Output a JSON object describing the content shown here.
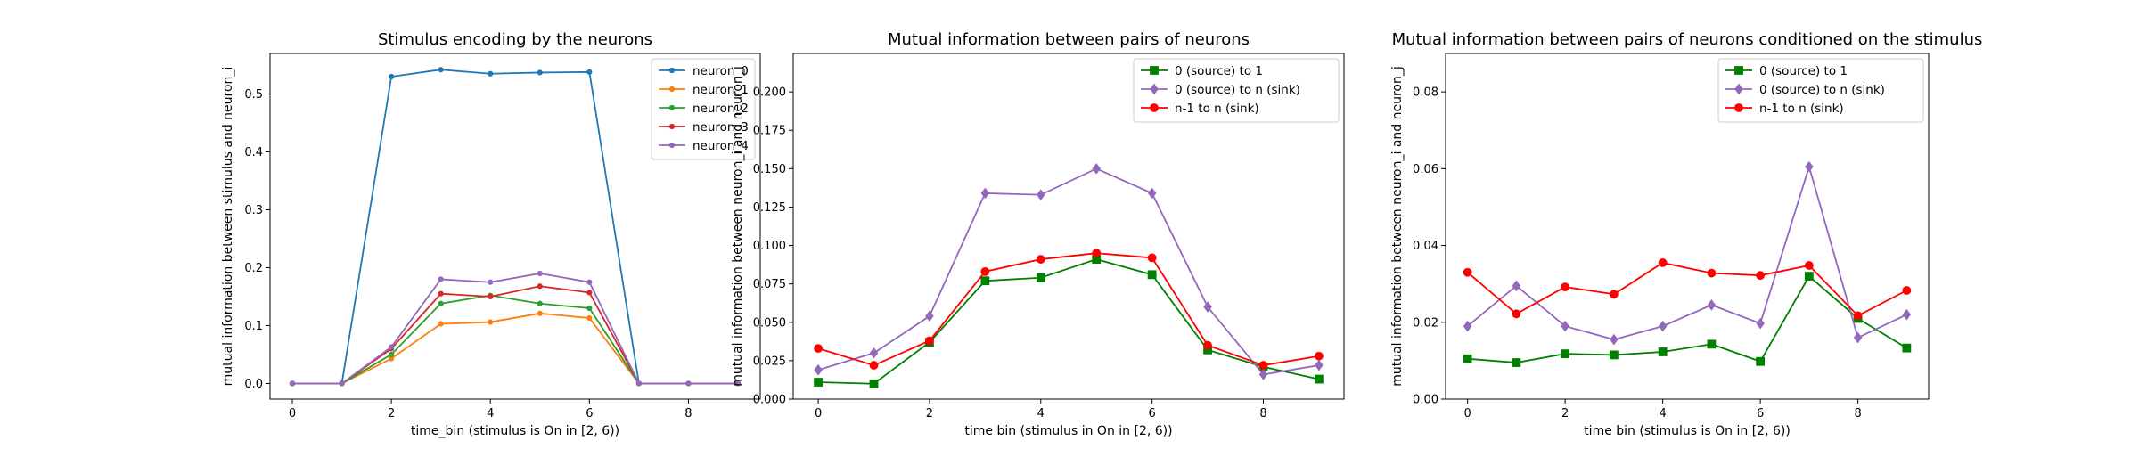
{
  "chart_data": [
    {
      "type": "line",
      "title": "Stimulus encoding by the neurons",
      "xlabel": "time_bin (stimulus is On in [2, 6))",
      "ylabel": "mutual information between stimulus and neuron_i",
      "xlim": [
        -0.45,
        9.45
      ],
      "ylim": [
        -0.027,
        0.57
      ],
      "xticks": [
        "0",
        "2",
        "4",
        "6",
        "8"
      ],
      "yticks": [
        "0.0",
        "0.1",
        "0.2",
        "0.3",
        "0.4",
        "0.5"
      ],
      "legend_position": "upper-right",
      "x": [
        0,
        1,
        2,
        3,
        4,
        5,
        6,
        7,
        8,
        9
      ],
      "series": [
        {
          "name": "neuron_0",
          "color": "#1f77b4",
          "marker": "dot",
          "values": [
            0.0,
            0.0,
            0.53,
            0.542,
            0.535,
            0.537,
            0.538,
            0.0,
            0.0,
            0.0
          ]
        },
        {
          "name": "neuron_1",
          "color": "#ff7f0e",
          "marker": "dot",
          "values": [
            0.0,
            0.0,
            0.043,
            0.103,
            0.106,
            0.121,
            0.113,
            0.0,
            0.0,
            0.0
          ]
        },
        {
          "name": "neuron_2",
          "color": "#2ca02c",
          "marker": "dot",
          "values": [
            0.0,
            0.0,
            0.05,
            0.138,
            0.152,
            0.138,
            0.13,
            0.0,
            0.0,
            0.0
          ]
        },
        {
          "name": "neuron_3",
          "color": "#d62728",
          "marker": "dot",
          "values": [
            0.0,
            0.0,
            0.06,
            0.155,
            0.15,
            0.168,
            0.157,
            0.0,
            0.0,
            0.0
          ]
        },
        {
          "name": "neuron_4",
          "color": "#9467bd",
          "marker": "dot",
          "values": [
            0.0,
            0.0,
            0.063,
            0.18,
            0.175,
            0.19,
            0.175,
            0.0,
            0.0,
            0.0
          ]
        }
      ]
    },
    {
      "type": "line",
      "title": "Mutual information between pairs of neurons",
      "xlabel": "time bin (stimulus in On in [2, 6))",
      "ylabel": "mutual information between neuron_i and neuron_j",
      "xlim": [
        -0.45,
        9.45
      ],
      "ylim": [
        0.0,
        0.225
      ],
      "xticks": [
        "0",
        "2",
        "4",
        "6",
        "8"
      ],
      "yticks": [
        "0.000",
        "0.025",
        "0.050",
        "0.075",
        "0.100",
        "0.125",
        "0.150",
        "0.175",
        "0.200"
      ],
      "legend_position": "upper-right",
      "x": [
        0,
        1,
        2,
        3,
        4,
        5,
        6,
        7,
        8,
        9
      ],
      "series": [
        {
          "name": "0 (source) to 1",
          "color": "#008000",
          "marker": "square",
          "values": [
            0.011,
            0.01,
            0.037,
            0.077,
            0.079,
            0.091,
            0.081,
            0.032,
            0.021,
            0.013
          ]
        },
        {
          "name": "0 (source) to n (sink)",
          "color": "#9467bd",
          "marker": "diamond",
          "values": [
            0.019,
            0.03,
            0.054,
            0.134,
            0.133,
            0.15,
            0.134,
            0.06,
            0.016,
            0.022
          ]
        },
        {
          "name": "n-1 to n (sink)",
          "color": "#ff0000",
          "marker": "circle",
          "values": [
            0.033,
            0.022,
            0.038,
            0.083,
            0.091,
            0.095,
            0.092,
            0.035,
            0.022,
            0.028
          ]
        }
      ]
    },
    {
      "type": "line",
      "title": "Mutual information between pairs of neurons conditioned on the stimulus",
      "xlabel": "time bin (stimulus is On in [2, 6))",
      "ylabel": "mutual information between neuron_i and neuron_j",
      "xlim": [
        -0.45,
        9.45
      ],
      "ylim": [
        0.0,
        0.09
      ],
      "xticks": [
        "0",
        "2",
        "4",
        "6",
        "8"
      ],
      "yticks": [
        "0.00",
        "0.02",
        "0.04",
        "0.06",
        "0.08"
      ],
      "legend_position": "upper-right",
      "x": [
        0,
        1,
        2,
        3,
        4,
        5,
        6,
        7,
        8,
        9
      ],
      "series": [
        {
          "name": "0 (source) to 1",
          "color": "#008000",
          "marker": "square",
          "values": [
            0.0105,
            0.0095,
            0.0118,
            0.0115,
            0.0123,
            0.0143,
            0.0098,
            0.032,
            0.021,
            0.0133
          ]
        },
        {
          "name": "0 (source) to n (sink)",
          "color": "#9467bd",
          "marker": "diamond",
          "values": [
            0.019,
            0.0295,
            0.019,
            0.0155,
            0.019,
            0.0245,
            0.0197,
            0.0605,
            0.016,
            0.022
          ]
        },
        {
          "name": "n-1 to n (sink)",
          "color": "#ff0000",
          "marker": "circle",
          "values": [
            0.033,
            0.0222,
            0.0292,
            0.0273,
            0.0355,
            0.0328,
            0.0322,
            0.0348,
            0.0217,
            0.0283
          ]
        }
      ]
    }
  ]
}
